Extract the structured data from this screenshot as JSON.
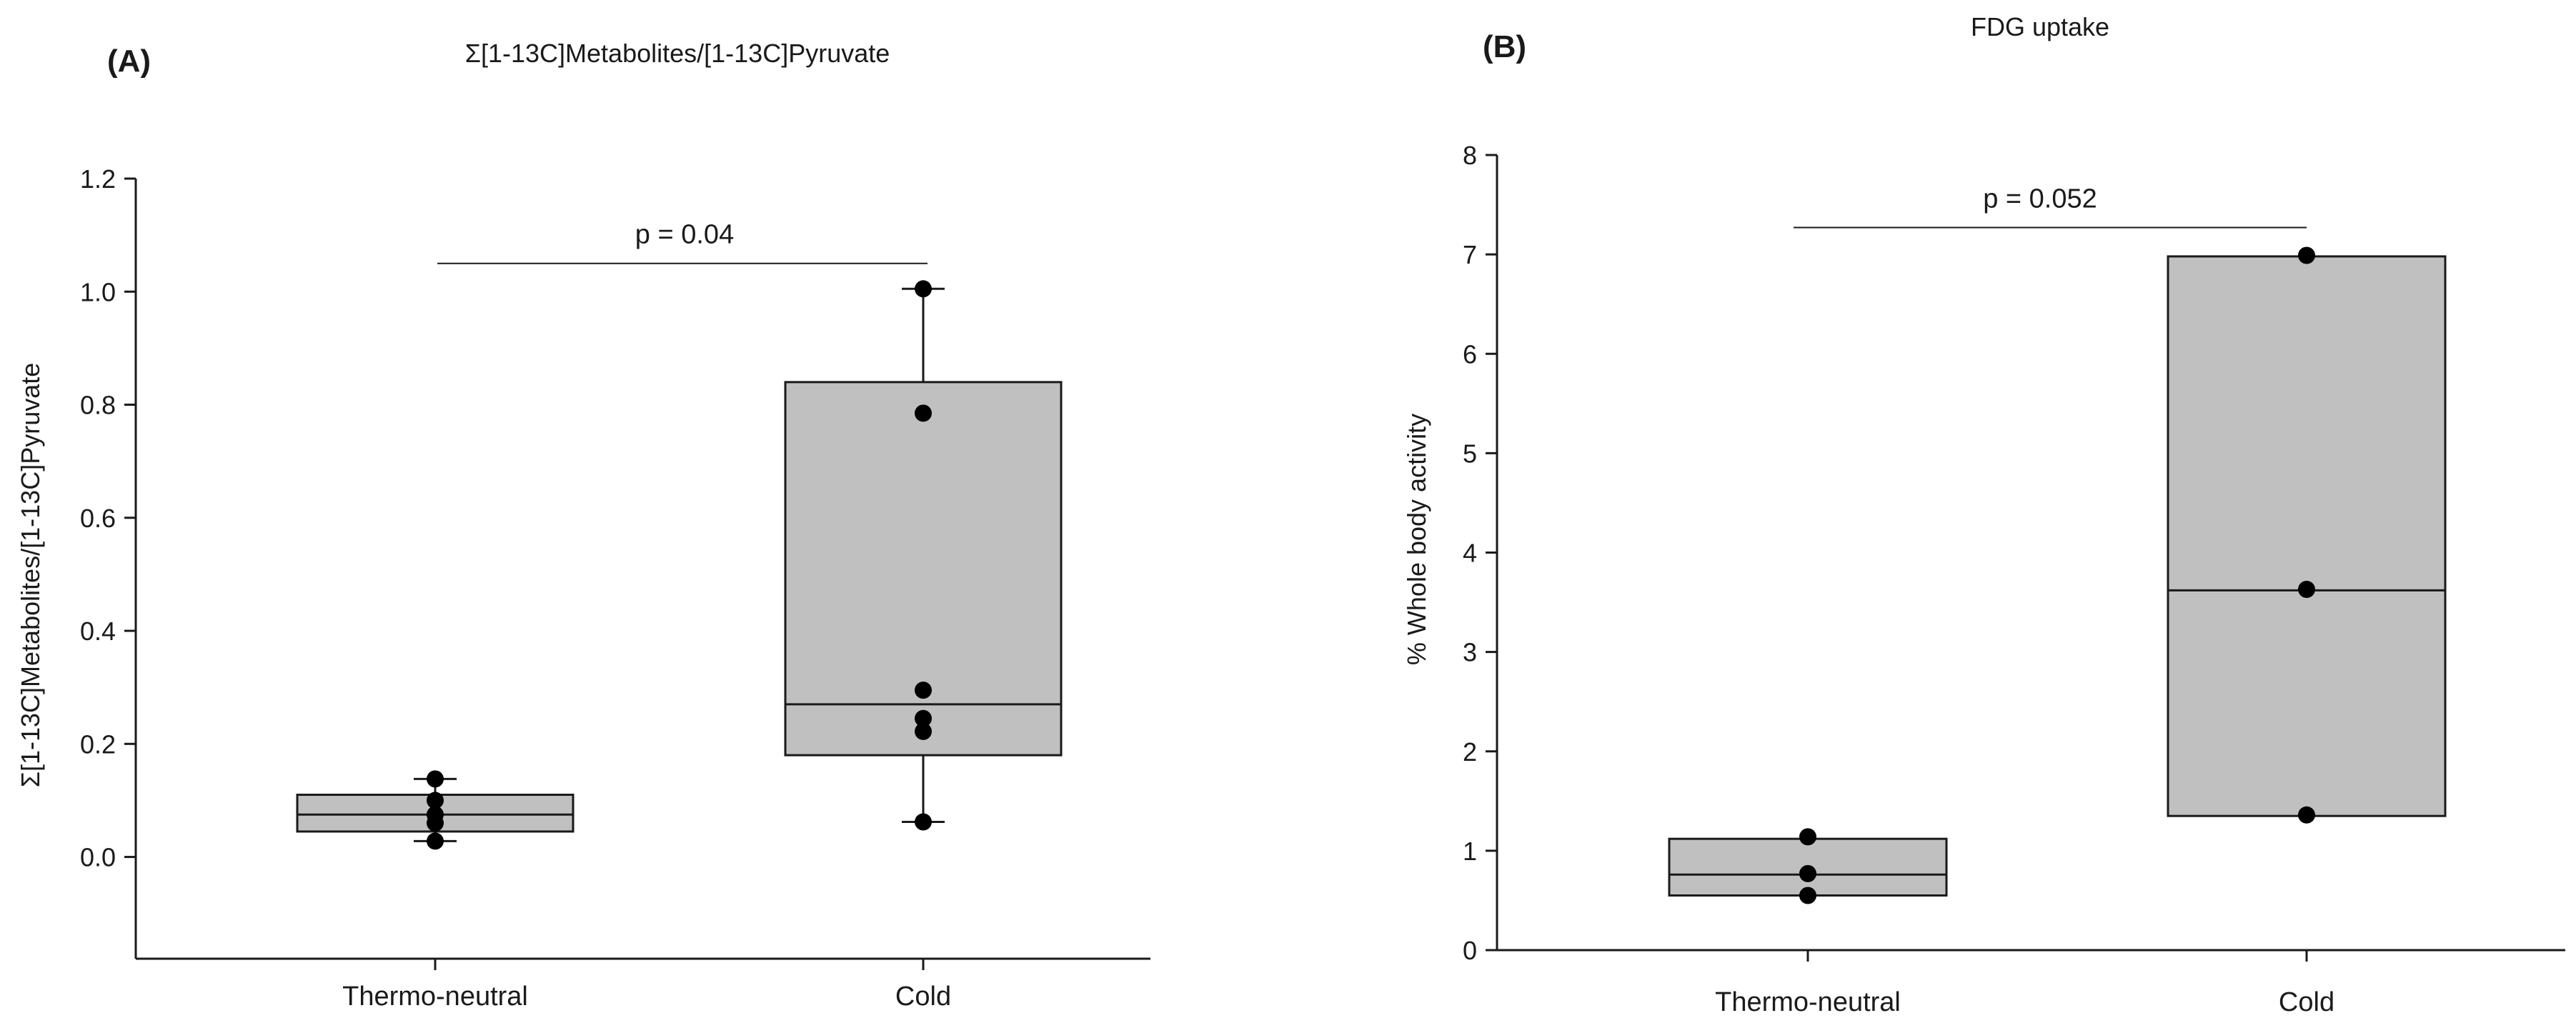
{
  "chart_data": [
    {
      "type": "box",
      "panel_label": "(A)",
      "title": "Σ[1-13C]Metabolites/[1-13C]Pyruvate",
      "xlabel": "",
      "ylabel": "Σ[1-13C]Metabolites/[1-13C]Pyruvate",
      "ylim": [
        -0.18,
        1.2
      ],
      "yticks": [
        0.0,
        0.2,
        0.4,
        0.6,
        0.8,
        1.0,
        1.2
      ],
      "ytick_labels": [
        "0.0",
        "0.2",
        "0.4",
        "0.6",
        "0.8",
        "1.0",
        "1.2"
      ],
      "categories": [
        "Thermo-neutral",
        "Cold"
      ],
      "boxes": [
        {
          "category": "Thermo-neutral",
          "q1": 0.045,
          "median": 0.075,
          "q3": 0.11,
          "whisker_low": 0.028,
          "whisker_high": 0.138,
          "points": [
            0.028,
            0.06,
            0.075,
            0.1,
            0.138
          ]
        },
        {
          "category": "Cold",
          "q1": 0.18,
          "median": 0.27,
          "q3": 0.84,
          "whisker_low": 0.062,
          "whisker_high": 1.005,
          "points": [
            0.062,
            0.222,
            0.245,
            0.295,
            0.785,
            1.005
          ]
        }
      ],
      "annotation": {
        "text": "p = 0.04",
        "y": 1.05
      },
      "grid": false
    },
    {
      "type": "box",
      "panel_label": "(B)",
      "title": "FDG uptake",
      "xlabel": "",
      "ylabel": "% Whole body activity",
      "ylim": [
        0,
        8
      ],
      "yticks": [
        0,
        1,
        2,
        3,
        4,
        5,
        6,
        7,
        8
      ],
      "ytick_labels": [
        "0",
        "1",
        "2",
        "3",
        "4",
        "5",
        "6",
        "7",
        "8"
      ],
      "categories": [
        "Thermo-neutral",
        "Cold"
      ],
      "boxes": [
        {
          "category": "Thermo-neutral",
          "q1": 0.55,
          "median": 0.76,
          "q3": 1.12,
          "points": [
            0.55,
            0.77,
            1.14
          ]
        },
        {
          "category": "Cold",
          "q1": 1.35,
          "median": 3.62,
          "q3": 6.98,
          "points": [
            1.36,
            3.63,
            6.99
          ]
        }
      ],
      "annotation": {
        "text": "p = 0.052",
        "y": 7.27
      },
      "grid": false
    }
  ]
}
